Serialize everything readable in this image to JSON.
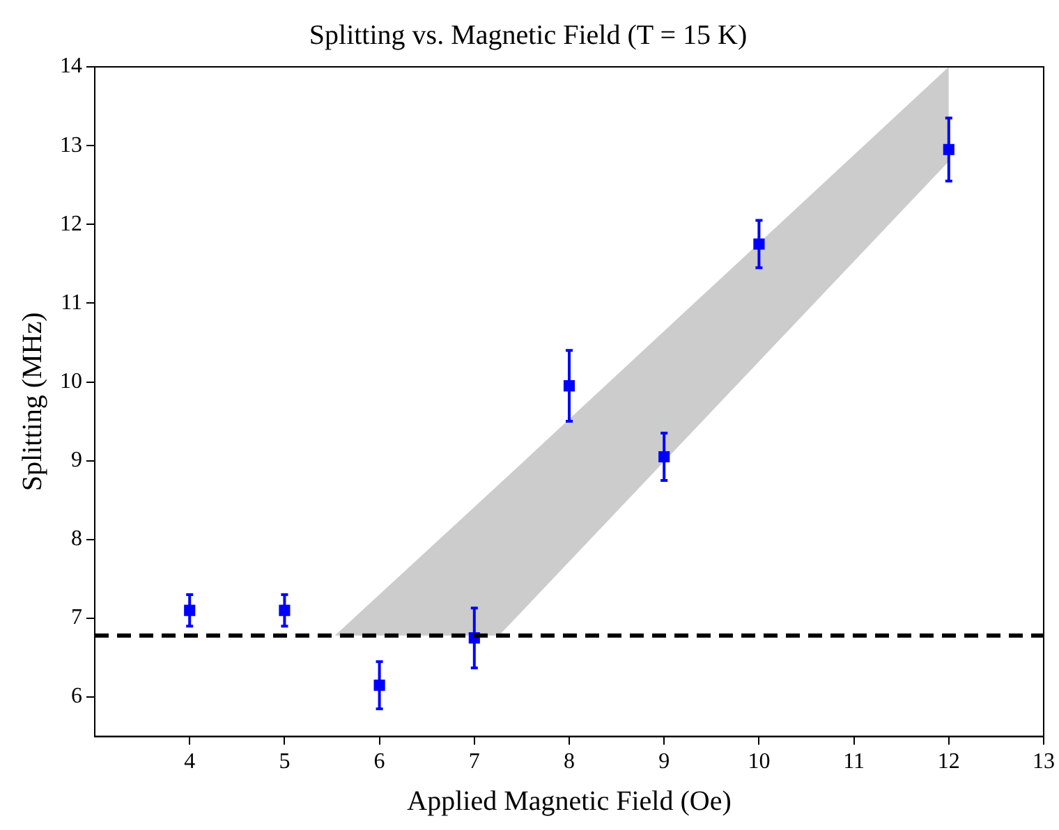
{
  "chart_data": {
    "type": "scatter",
    "title": "Splitting vs. Magnetic Field (T = 15 K)",
    "xlabel": "Applied Magnetic Field (Oe)",
    "ylabel": "Splitting (MHz)",
    "xlim": [
      3,
      13
    ],
    "xticks": [
      4,
      5,
      6,
      7,
      8,
      9,
      10,
      11,
      12,
      13
    ],
    "ylim": [
      5.5,
      14
    ],
    "yticks": [
      6,
      7,
      8,
      9,
      10,
      11,
      12,
      13,
      14
    ],
    "grid": false,
    "legend": false,
    "marker": "square",
    "series": [
      {
        "type": "area",
        "color": "#cccccc",
        "x": [
          5.53,
          7.26,
          12
        ],
        "values": [
          null,
          null,
          null
        ],
        "lower": [
          6.78,
          6.78,
          12.8
        ],
        "upper": [
          6.78,
          8.7,
          14
        ]
      },
      {
        "type": "scatter",
        "color": "#0000ff",
        "x": [
          4,
          5,
          6,
          7,
          8,
          9,
          10,
          12
        ],
        "values": [
          7.1,
          7.1,
          6.15,
          6.75,
          9.95,
          9.05,
          11.75,
          12.95
        ],
        "errors": [
          0.2,
          0.2,
          0.3,
          0.38,
          0.45,
          0.3,
          0.3,
          0.4
        ]
      }
    ],
    "ref_lines": [
      {
        "axis": "y",
        "value": 6.78,
        "color": "#000000",
        "line_style": "dashed"
      }
    ]
  }
}
